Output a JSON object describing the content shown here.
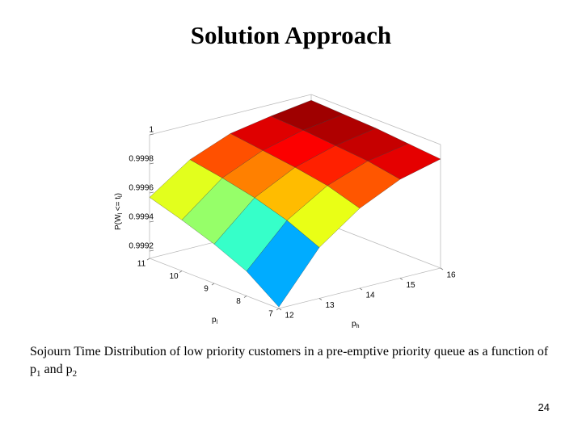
{
  "chart_data": {
    "type": "surface",
    "title": "Solution Approach",
    "caption": [
      "Sojourn Time Distribution of low priority customers in a pre-emptive priority queue as a function of p",
      "1",
      " and p",
      "2"
    ],
    "x_label": [
      "p",
      "l"
    ],
    "y_label": [
      "p",
      "h"
    ],
    "z_label": [
      "P(W",
      "l",
      " <= t",
      "l",
      ")"
    ],
    "x": [
      7,
      8,
      9,
      10,
      11
    ],
    "y": [
      12,
      13,
      14,
      15,
      16
    ],
    "z": [
      [
        0.99916,
        0.99932,
        0.99942,
        0.9995,
        0.99957
      ],
      [
        0.9995,
        0.9996,
        0.99967,
        0.99972,
        0.99976
      ],
      [
        0.9997,
        0.99977,
        0.99981,
        0.99984,
        0.99987
      ],
      [
        0.99983,
        0.99987,
        0.99989,
        0.99991,
        0.99992
      ],
      [
        0.9999,
        0.99992,
        0.99994,
        0.99995,
        0.99996
      ]
    ],
    "xlim": [
      7,
      11
    ],
    "ylim": [
      12,
      16
    ],
    "zlim": [
      0.99915,
      1
    ],
    "xticks": [
      7,
      8,
      9,
      10,
      11
    ],
    "yticks": [
      12,
      13,
      14,
      15,
      16
    ],
    "zticks": [
      0.9992,
      0.9994,
      0.9996,
      0.9998,
      1
    ],
    "colormap": "jet"
  },
  "page_number": "24"
}
